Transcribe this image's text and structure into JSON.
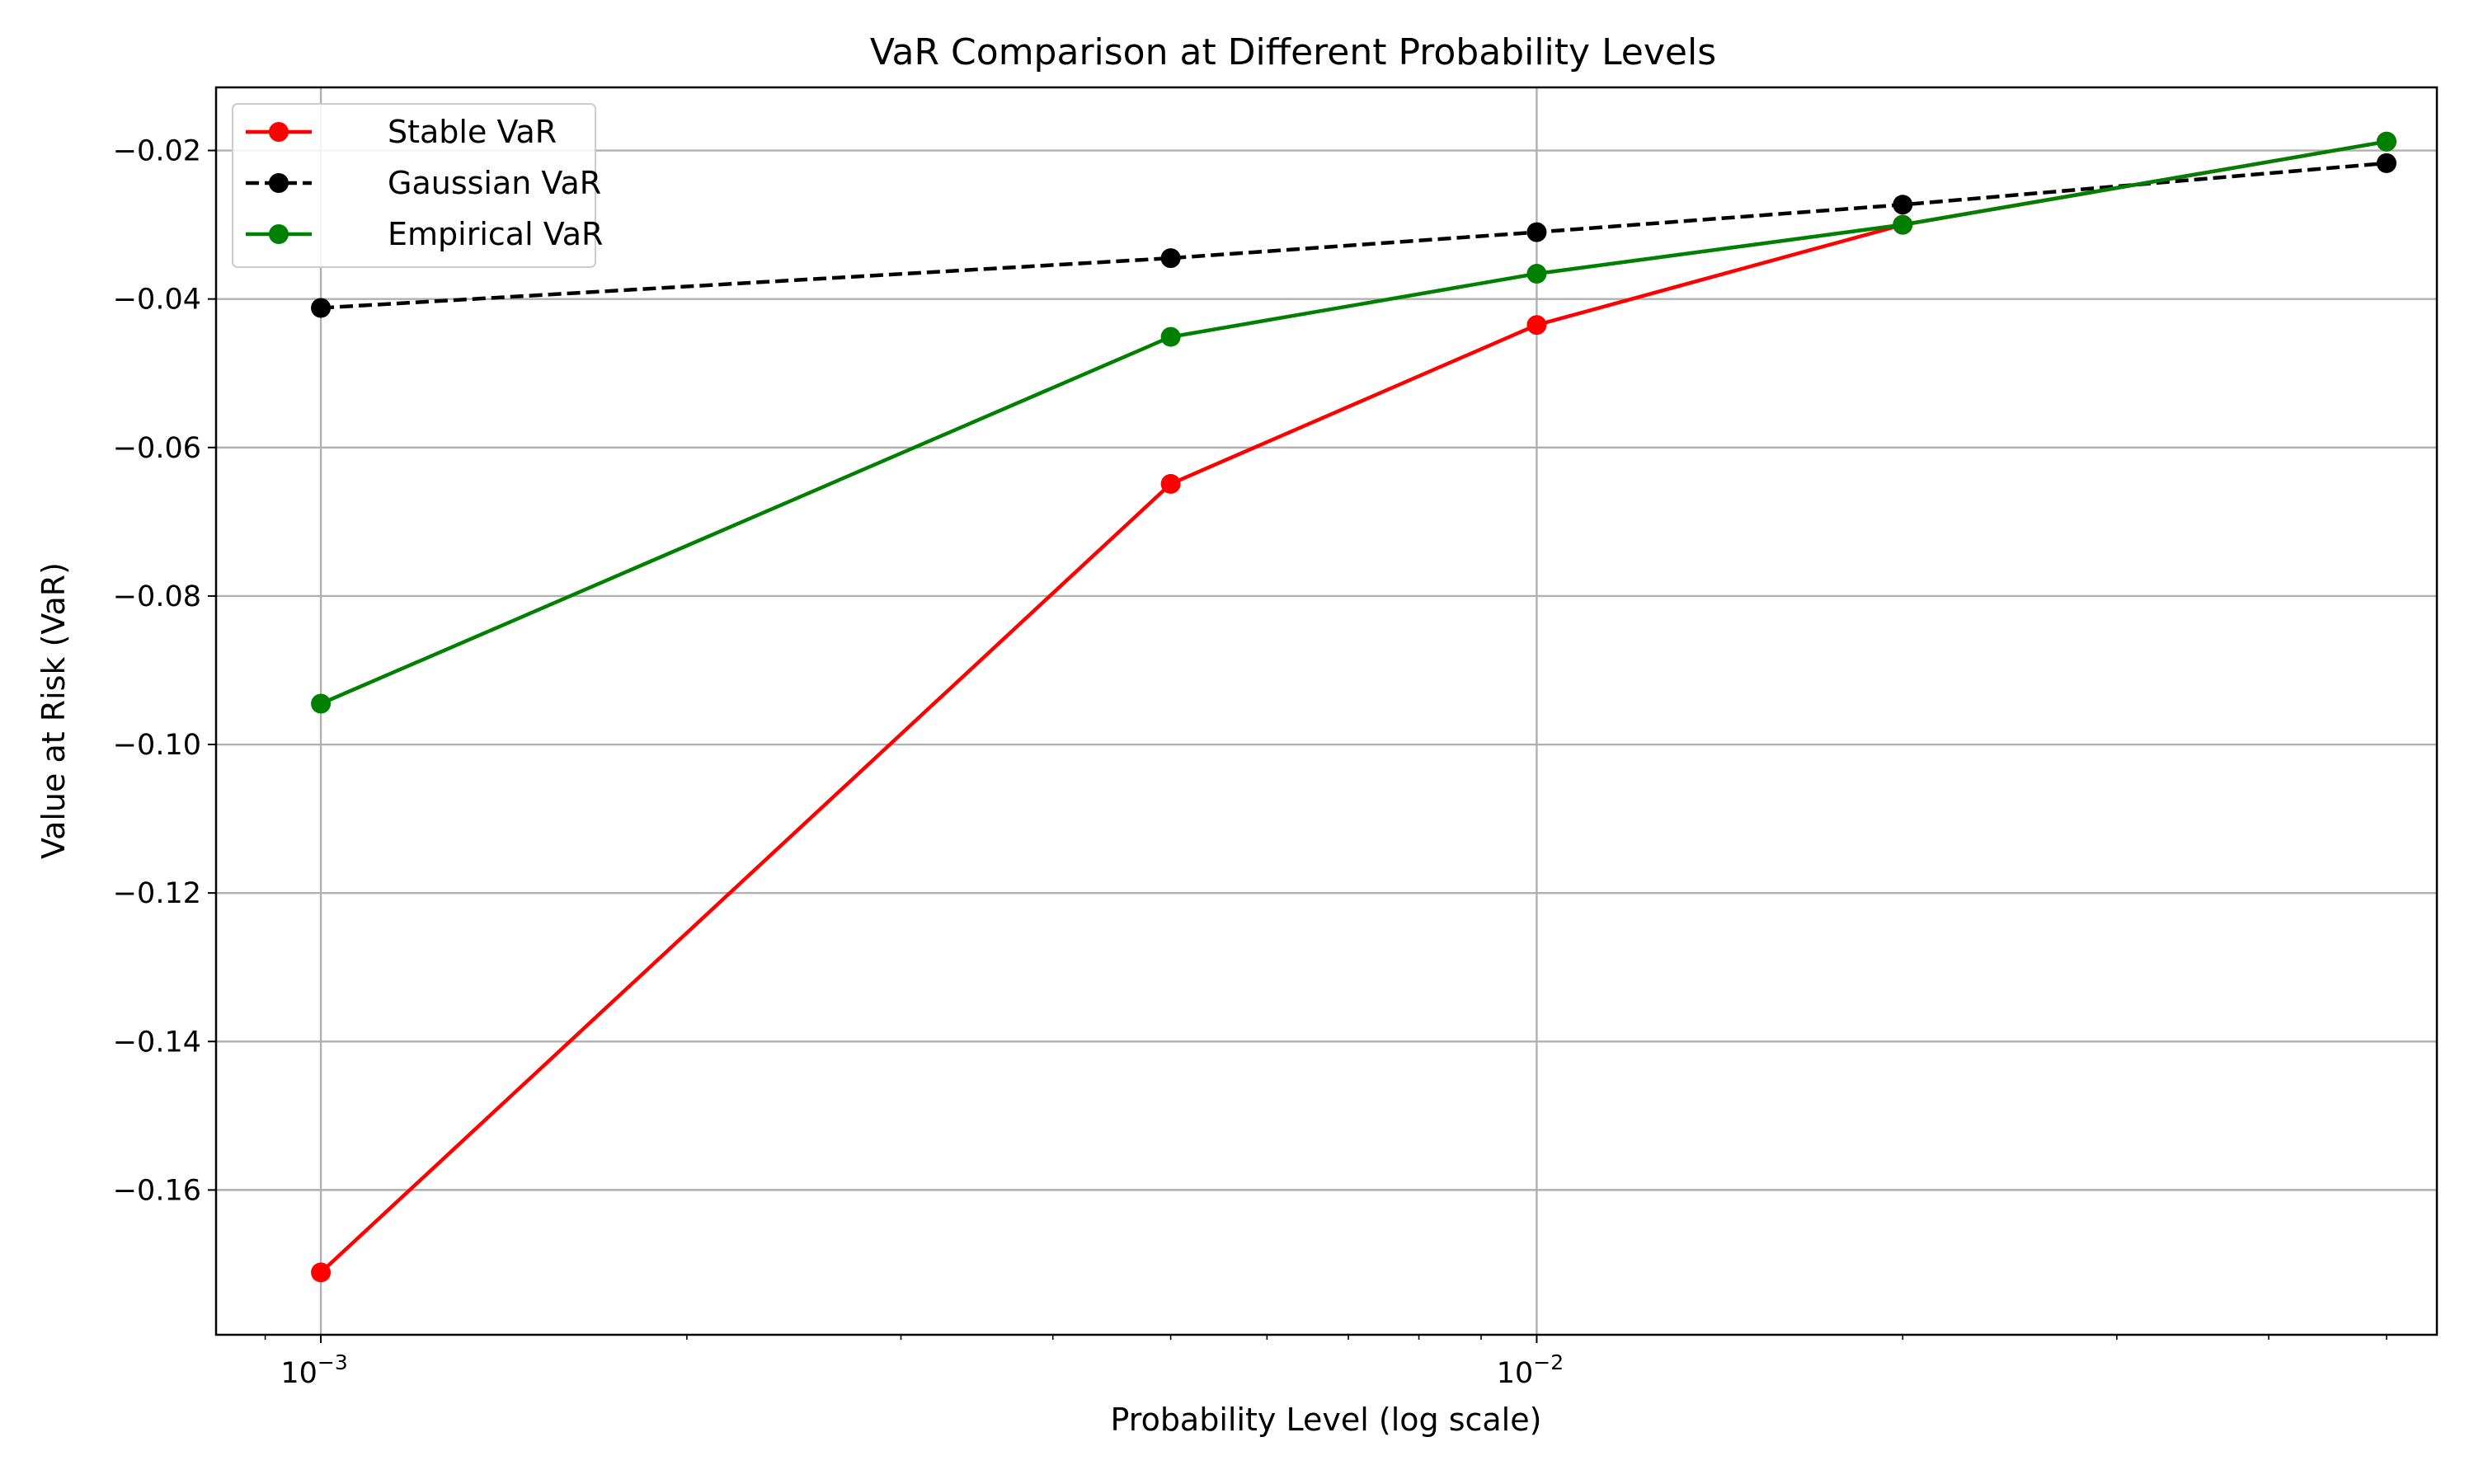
{
  "chart_data": {
    "type": "line",
    "title": "VaR Comparison at Different Probability Levels",
    "xlabel": "Probability Level (log scale)",
    "ylabel": "Value at Risk (VaR)",
    "xscale": "log",
    "x": [
      0.001,
      0.005,
      0.01,
      0.02,
      0.05
    ],
    "xlim": [
      0.00082,
      0.055
    ],
    "ylim": [
      -0.1795,
      -0.0115
    ],
    "xticks": [
      {
        "value": 0.001,
        "base": "10",
        "exp": "−3"
      },
      {
        "value": 0.01,
        "base": "10",
        "exp": "−2"
      }
    ],
    "yticks": [
      {
        "value": -0.02,
        "label": "−0.02"
      },
      {
        "value": -0.04,
        "label": "−0.04"
      },
      {
        "value": -0.06,
        "label": "−0.06"
      },
      {
        "value": -0.08,
        "label": "−0.08"
      },
      {
        "value": -0.1,
        "label": "−0.10"
      },
      {
        "value": -0.12,
        "label": "−0.12"
      },
      {
        "value": -0.14,
        "label": "−0.14"
      },
      {
        "value": -0.16,
        "label": "−0.16"
      }
    ],
    "grid": true,
    "legend_position": "top-left",
    "series": [
      {
        "name": "Stable VaR",
        "color": "#ff0000",
        "dashed": false,
        "values": [
          -0.1711,
          -0.0649,
          -0.0435,
          -0.03,
          -0.0188
        ]
      },
      {
        "name": "Gaussian VaR",
        "color": "#000000",
        "dashed": true,
        "values": [
          -0.0412,
          -0.0345,
          -0.031,
          -0.0273,
          -0.0217
        ]
      },
      {
        "name": "Empirical VaR",
        "color": "#008000",
        "dashed": false,
        "values": [
          -0.0945,
          -0.0451,
          -0.0366,
          -0.03,
          -0.0188
        ]
      }
    ]
  }
}
